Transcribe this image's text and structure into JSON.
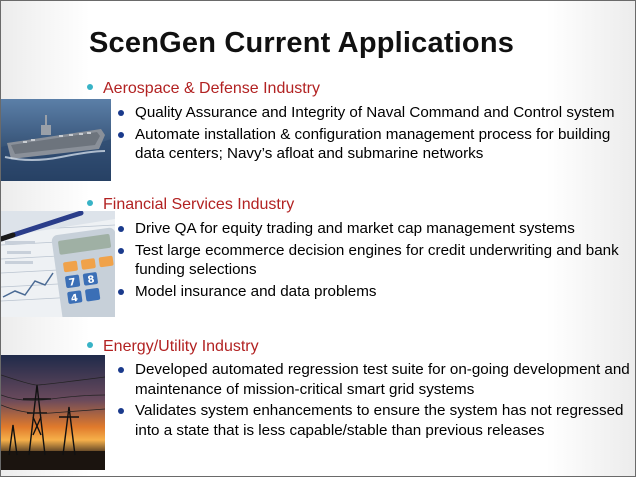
{
  "slide": {
    "title": "ScenGen Current Applications",
    "sections": [
      {
        "heading": "Aerospace & Defense Industry",
        "image": "aircraft-carrier-photo",
        "bullets": [
          "Quality Assurance and Integrity of Naval Command and Control system",
          "Automate installation & configuration management process for building data centers; Navy’s afloat and submarine networks"
        ]
      },
      {
        "heading": "Financial Services Industry",
        "image": "calculator-chart-photo",
        "bullets": [
          "Drive QA for equity trading and market cap management systems",
          "Test large ecommerce decision engines for credit underwriting and bank funding selections",
          "Model insurance and data problems"
        ]
      },
      {
        "heading": "Energy/Utility Industry",
        "image": "power-lines-sunset-photo",
        "bullets": [
          "Developed automated regression test suite for on-going development and maintenance of mission-critical smart grid systems",
          "Validates system enhancements to ensure  the system has not regressed into a state that is less capable/stable than previous releases"
        ]
      }
    ]
  },
  "colors": {
    "title": "#111111",
    "section_heading": "#b22222",
    "section_dot": "#38b3c6",
    "bullet": "#1a3a8c"
  }
}
